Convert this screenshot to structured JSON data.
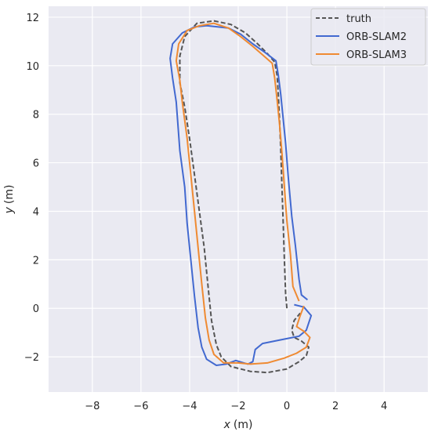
{
  "chart_data": {
    "type": "line",
    "xlabel_var": "x",
    "xlabel_unit": "(m)",
    "ylabel_var": "y",
    "ylabel_unit": "(m)",
    "xlim": [
      -9.8,
      5.8
    ],
    "ylim": [
      -3.45,
      12.45
    ],
    "xticks": [
      -8,
      -6,
      -4,
      -2,
      0,
      2,
      4
    ],
    "yticks": [
      -2,
      0,
      2,
      4,
      6,
      8,
      10,
      12
    ],
    "grid": true,
    "legend_position": "upper right",
    "series": [
      {
        "name": "truth",
        "color": "#555555",
        "dash": true,
        "points": [
          [
            0,
            0
          ],
          [
            -0.05,
            0.6
          ],
          [
            -0.1,
            2
          ],
          [
            -0.15,
            3.5
          ],
          [
            -0.2,
            5
          ],
          [
            -0.25,
            6.5
          ],
          [
            -0.3,
            7.8
          ],
          [
            -0.35,
            8.8
          ],
          [
            -0.4,
            9.6
          ],
          [
            -0.5,
            10.15
          ],
          [
            -0.8,
            10.5
          ],
          [
            -1.2,
            10.9
          ],
          [
            -1.7,
            11.35
          ],
          [
            -2.3,
            11.7
          ],
          [
            -3,
            11.85
          ],
          [
            -3.7,
            11.75
          ],
          [
            -4.2,
            11.2
          ],
          [
            -4.4,
            10.4
          ],
          [
            -4.4,
            9.3
          ],
          [
            -4.2,
            8.3
          ],
          [
            -4.0,
            7
          ],
          [
            -3.8,
            5.5
          ],
          [
            -3.6,
            4
          ],
          [
            -3.4,
            2.5
          ],
          [
            -3.25,
            1
          ],
          [
            -3.1,
            -0.5
          ],
          [
            -2.9,
            -1.5
          ],
          [
            -2.7,
            -2.0
          ],
          [
            -2.3,
            -2.4
          ],
          [
            -1.5,
            -2.6
          ],
          [
            -0.8,
            -2.65
          ],
          [
            0,
            -2.5
          ],
          [
            0.5,
            -2.2
          ],
          [
            0.8,
            -1.95
          ],
          [
            0.9,
            -1.6
          ],
          [
            0.6,
            -1.35
          ],
          [
            0.3,
            -1.2
          ],
          [
            0.2,
            -0.9
          ],
          [
            0.3,
            -0.5
          ],
          [
            0.55,
            -0.2
          ]
        ]
      },
      {
        "name": "ORB-SLAM2",
        "color": "#4269d0",
        "dash": false,
        "points": [
          [
            0.85,
            0.35
          ],
          [
            0.6,
            0.55
          ],
          [
            0.5,
            1.2
          ],
          [
            0.35,
            2.6
          ],
          [
            0.2,
            3.8
          ],
          [
            0.05,
            5.5
          ],
          [
            -0.05,
            6.8
          ],
          [
            -0.15,
            7.8
          ],
          [
            -0.25,
            8.8
          ],
          [
            -0.35,
            9.6
          ],
          [
            -0.45,
            10.2
          ],
          [
            -0.9,
            10.55
          ],
          [
            -1.4,
            10.9
          ],
          [
            -1.9,
            11.3
          ],
          [
            -2.4,
            11.55
          ],
          [
            -3.3,
            11.65
          ],
          [
            -3.8,
            11.6
          ],
          [
            -4.3,
            11.35
          ],
          [
            -4.7,
            10.9
          ],
          [
            -4.8,
            10.3
          ],
          [
            -4.7,
            9.5
          ],
          [
            -4.55,
            8.5
          ],
          [
            -4.4,
            6.5
          ],
          [
            -4.2,
            5
          ],
          [
            -4.1,
            3.5
          ],
          [
            -3.95,
            2
          ],
          [
            -3.8,
            0.5
          ],
          [
            -3.65,
            -0.8
          ],
          [
            -3.5,
            -1.6
          ],
          [
            -3.3,
            -2.1
          ],
          [
            -2.9,
            -2.35
          ],
          [
            -2.5,
            -2.3
          ],
          [
            -2.1,
            -2.15
          ],
          [
            -1.6,
            -2.3
          ],
          [
            -1.4,
            -2.2
          ],
          [
            -1.3,
            -1.7
          ],
          [
            -1.0,
            -1.45
          ],
          [
            -0.5,
            -1.35
          ],
          [
            0.0,
            -1.25
          ],
          [
            0.5,
            -1.15
          ],
          [
            0.8,
            -0.9
          ],
          [
            1.0,
            -0.3
          ],
          [
            0.7,
            0.05
          ],
          [
            0.3,
            0.15
          ]
        ]
      },
      {
        "name": "ORB-SLAM3",
        "color": "#ef8a32",
        "dash": false,
        "points": [
          [
            0.5,
            0.3
          ],
          [
            0.25,
            0.9
          ],
          [
            0.15,
            2.2
          ],
          [
            0.0,
            3.6
          ],
          [
            -0.1,
            5
          ],
          [
            -0.2,
            6.4
          ],
          [
            -0.3,
            7.6
          ],
          [
            -0.4,
            8.6
          ],
          [
            -0.5,
            9.5
          ],
          [
            -0.6,
            10.1
          ],
          [
            -1.0,
            10.45
          ],
          [
            -1.4,
            10.8
          ],
          [
            -1.9,
            11.2
          ],
          [
            -2.4,
            11.55
          ],
          [
            -3.0,
            11.75
          ],
          [
            -3.6,
            11.65
          ],
          [
            -4.1,
            11.45
          ],
          [
            -4.45,
            10.9
          ],
          [
            -4.55,
            10.2
          ],
          [
            -4.4,
            9.4
          ],
          [
            -4.3,
            8.5
          ],
          [
            -4.1,
            7
          ],
          [
            -3.95,
            5.5
          ],
          [
            -3.8,
            4
          ],
          [
            -3.65,
            2.5
          ],
          [
            -3.5,
            1
          ],
          [
            -3.35,
            -0.4
          ],
          [
            -3.2,
            -1.3
          ],
          [
            -3.0,
            -1.9
          ],
          [
            -2.6,
            -2.25
          ],
          [
            -2.0,
            -2.25
          ],
          [
            -1.5,
            -2.3
          ],
          [
            -0.8,
            -2.25
          ],
          [
            -0.1,
            -2.05
          ],
          [
            0.4,
            -1.85
          ],
          [
            0.8,
            -1.6
          ],
          [
            0.95,
            -1.2
          ],
          [
            0.7,
            -0.95
          ],
          [
            0.4,
            -0.75
          ],
          [
            0.55,
            -0.3
          ],
          [
            0.7,
            0.1
          ]
        ]
      }
    ]
  }
}
